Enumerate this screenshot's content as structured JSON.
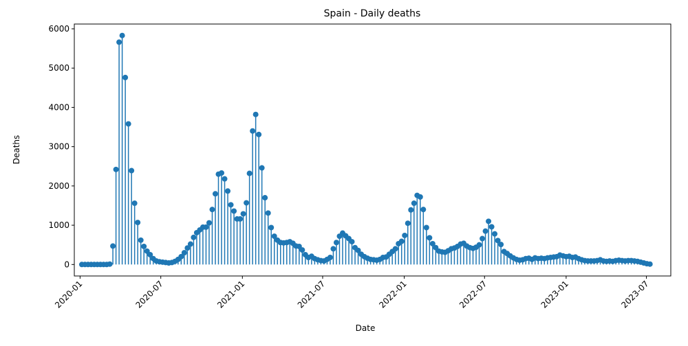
{
  "chart_data": {
    "type": "stem",
    "title": "Spain - Daily deaths",
    "xlabel": "Date",
    "ylabel": "Deaths",
    "color": "#1f77b4",
    "x": [
      "2020-01-05",
      "2020-01-12",
      "2020-01-19",
      "2020-01-26",
      "2020-02-02",
      "2020-02-09",
      "2020-02-16",
      "2020-02-23",
      "2020-03-01",
      "2020-03-08",
      "2020-03-15",
      "2020-03-22",
      "2020-03-29",
      "2020-04-05",
      "2020-04-12",
      "2020-04-19",
      "2020-04-26",
      "2020-05-03",
      "2020-05-10",
      "2020-05-17",
      "2020-05-24",
      "2020-05-31",
      "2020-06-07",
      "2020-06-14",
      "2020-06-21",
      "2020-06-28",
      "2020-07-05",
      "2020-07-12",
      "2020-07-19",
      "2020-07-26",
      "2020-08-02",
      "2020-08-09",
      "2020-08-16",
      "2020-08-23",
      "2020-08-30",
      "2020-09-06",
      "2020-09-13",
      "2020-09-20",
      "2020-09-27",
      "2020-10-04",
      "2020-10-11",
      "2020-10-18",
      "2020-10-25",
      "2020-11-01",
      "2020-11-08",
      "2020-11-15",
      "2020-11-22",
      "2020-11-29",
      "2020-12-06",
      "2020-12-13",
      "2020-12-20",
      "2020-12-27",
      "2021-01-03",
      "2021-01-10",
      "2021-01-17",
      "2021-01-24",
      "2021-01-31",
      "2021-02-07",
      "2021-02-14",
      "2021-02-21",
      "2021-02-28",
      "2021-03-07",
      "2021-03-14",
      "2021-03-21",
      "2021-03-28",
      "2021-04-04",
      "2021-04-11",
      "2021-04-18",
      "2021-04-25",
      "2021-05-02",
      "2021-05-09",
      "2021-05-16",
      "2021-05-23",
      "2021-05-30",
      "2021-06-06",
      "2021-06-13",
      "2021-06-20",
      "2021-06-27",
      "2021-07-04",
      "2021-07-11",
      "2021-07-18",
      "2021-07-25",
      "2021-08-01",
      "2021-08-08",
      "2021-08-15",
      "2021-08-22",
      "2021-08-29",
      "2021-09-05",
      "2021-09-12",
      "2021-09-19",
      "2021-09-26",
      "2021-10-03",
      "2021-10-10",
      "2021-10-17",
      "2021-10-24",
      "2021-10-31",
      "2021-11-07",
      "2021-11-14",
      "2021-11-21",
      "2021-11-28",
      "2021-12-05",
      "2021-12-12",
      "2021-12-19",
      "2021-12-26",
      "2022-01-02",
      "2022-01-09",
      "2022-01-16",
      "2022-01-23",
      "2022-01-30",
      "2022-02-06",
      "2022-02-13",
      "2022-02-20",
      "2022-02-27",
      "2022-03-06",
      "2022-03-13",
      "2022-03-20",
      "2022-03-27",
      "2022-04-03",
      "2022-04-10",
      "2022-04-17",
      "2022-04-24",
      "2022-05-01",
      "2022-05-08",
      "2022-05-15",
      "2022-05-22",
      "2022-05-29",
      "2022-06-05",
      "2022-06-12",
      "2022-06-19",
      "2022-06-26",
      "2022-07-03",
      "2022-07-10",
      "2022-07-17",
      "2022-07-24",
      "2022-07-31",
      "2022-08-07",
      "2022-08-14",
      "2022-08-21",
      "2022-08-28",
      "2022-09-04",
      "2022-09-11",
      "2022-09-18",
      "2022-09-25",
      "2022-10-02",
      "2022-10-09",
      "2022-10-16",
      "2022-10-23",
      "2022-10-30",
      "2022-11-06",
      "2022-11-13",
      "2022-11-20",
      "2022-11-27",
      "2022-12-04",
      "2022-12-11",
      "2022-12-18",
      "2022-12-25",
      "2023-01-01",
      "2023-01-08",
      "2023-01-15",
      "2023-01-22",
      "2023-01-29",
      "2023-02-05",
      "2023-02-12",
      "2023-02-19",
      "2023-02-26",
      "2023-03-05",
      "2023-03-12",
      "2023-03-19",
      "2023-03-26",
      "2023-04-02",
      "2023-04-09",
      "2023-04-16",
      "2023-04-23",
      "2023-04-30",
      "2023-05-07",
      "2023-05-14",
      "2023-05-21",
      "2023-05-28",
      "2023-06-04",
      "2023-06-11",
      "2023-06-18",
      "2023-06-25",
      "2023-07-02",
      "2023-07-09"
    ],
    "values": [
      0,
      0,
      0,
      0,
      0,
      0,
      0,
      0,
      0,
      10,
      470,
      2420,
      5660,
      5830,
      4760,
      3580,
      2390,
      1560,
      1070,
      620,
      460,
      340,
      250,
      150,
      90,
      70,
      60,
      50,
      40,
      50,
      80,
      130,
      200,
      300,
      420,
      520,
      690,
      810,
      880,
      950,
      950,
      1060,
      1400,
      1800,
      2300,
      2330,
      2180,
      1870,
      1520,
      1360,
      1160,
      1160,
      1290,
      1570,
      2320,
      3400,
      3820,
      3310,
      2460,
      1700,
      1310,
      940,
      720,
      620,
      560,
      550,
      560,
      580,
      540,
      470,
      460,
      370,
      250,
      180,
      210,
      150,
      120,
      100,
      90,
      130,
      180,
      400,
      560,
      720,
      800,
      730,
      660,
      580,
      430,
      360,
      260,
      200,
      160,
      130,
      120,
      110,
      130,
      180,
      190,
      260,
      330,
      400,
      530,
      590,
      740,
      1050,
      1390,
      1560,
      1760,
      1720,
      1400,
      940,
      680,
      530,
      430,
      340,
      320,
      310,
      350,
      400,
      420,
      460,
      520,
      540,
      470,
      430,
      410,
      440,
      500,
      660,
      850,
      1100,
      960,
      780,
      610,
      510,
      330,
      280,
      220,
      170,
      130,
      110,
      120,
      150,
      160,
      130,
      170,
      150,
      160,
      150,
      170,
      180,
      190,
      200,
      240,
      220,
      200,
      210,
      180,
      190,
      150,
      120,
      100,
      90,
      90,
      90,
      100,
      120,
      90,
      80,
      90,
      80,
      100,
      110,
      100,
      90,
      100,
      100,
      90,
      80,
      60,
      40,
      20,
      10
    ],
    "xlim": [
      "2019-12-19",
      "2023-08-25"
    ],
    "xticks": [
      "2020-01",
      "2020-07",
      "2021-01",
      "2021-07",
      "2022-01",
      "2022-07",
      "2023-01",
      "2023-07"
    ],
    "ylim": [
      -292,
      6122
    ],
    "yticks": [
      0,
      1000,
      2000,
      3000,
      4000,
      5000,
      6000
    ]
  }
}
